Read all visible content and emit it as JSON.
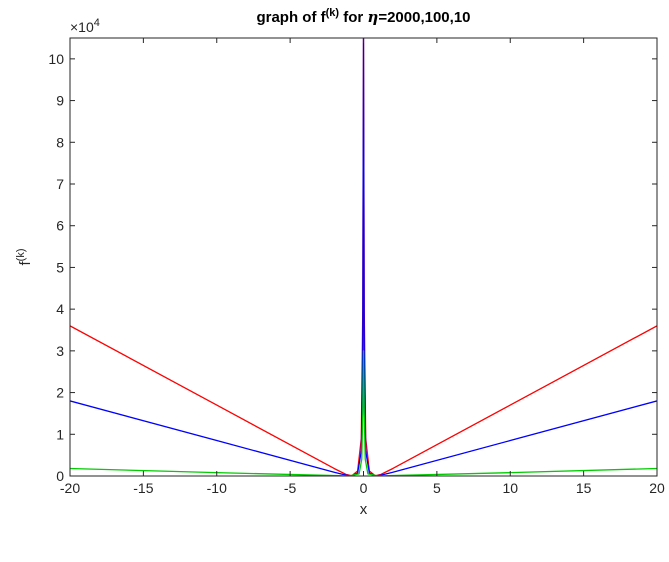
{
  "chart_data": {
    "type": "line",
    "title_parts": {
      "prefix": "graph of f",
      "superscript": "(k)",
      "middle": " for ",
      "symbol": "η",
      "suffix": "=2000,100,10"
    },
    "xlabel": "x",
    "ylabel_parts": {
      "base": "f",
      "superscript": "(k)"
    },
    "y_exponent_parts": {
      "prefix": "×10",
      "power": "4"
    },
    "xlim": [
      -20,
      20
    ],
    "ylim": [
      0,
      105000
    ],
    "x_ticks": [
      -20,
      -15,
      -10,
      -5,
      0,
      5,
      10,
      15,
      20
    ],
    "y_ticks": [
      0,
      10000,
      20000,
      30000,
      40000,
      50000,
      60000,
      70000,
      80000,
      90000,
      100000
    ],
    "y_tick_labels": [
      "0",
      "1",
      "2",
      "3",
      "4",
      "5",
      "6",
      "7",
      "8",
      "9",
      "10"
    ],
    "grid": false,
    "series": [
      {
        "color": "#ff0000",
        "points": [
          [
            -20,
            36000
          ],
          [
            -10,
            17000
          ],
          [
            -2,
            1800
          ],
          [
            -1.2,
            400
          ],
          [
            -0.8,
            50
          ],
          [
            -0.4,
            1200
          ],
          [
            -0.15,
            9000
          ],
          [
            -0.05,
            40000
          ],
          [
            0,
            105000
          ],
          [
            0.05,
            40000
          ],
          [
            0.15,
            9000
          ],
          [
            0.4,
            1200
          ],
          [
            0.8,
            50
          ],
          [
            1.2,
            400
          ],
          [
            2,
            1800
          ],
          [
            10,
            17000
          ],
          [
            20,
            36000
          ]
        ]
      },
      {
        "color": "#0000ff",
        "points": [
          [
            -20,
            18000
          ],
          [
            -10,
            8500
          ],
          [
            -2,
            900
          ],
          [
            -1.2,
            200
          ],
          [
            -0.8,
            30
          ],
          [
            -0.4,
            700
          ],
          [
            -0.15,
            6000
          ],
          [
            -0.05,
            30000
          ],
          [
            0,
            105000
          ],
          [
            0.05,
            30000
          ],
          [
            0.15,
            6000
          ],
          [
            0.4,
            700
          ],
          [
            0.8,
            30
          ],
          [
            1.2,
            200
          ],
          [
            2,
            900
          ],
          [
            10,
            8500
          ],
          [
            20,
            18000
          ]
        ]
      },
      {
        "color": "#00cc00",
        "points": [
          [
            -20,
            1800
          ],
          [
            -10,
            800
          ],
          [
            -2,
            100
          ],
          [
            -1,
            20
          ],
          [
            -0.3,
            500
          ],
          [
            -0.12,
            4000
          ],
          [
            -0.05,
            15000
          ],
          [
            0,
            30000
          ],
          [
            0.05,
            15000
          ],
          [
            0.12,
            4000
          ],
          [
            0.3,
            500
          ],
          [
            1,
            20
          ],
          [
            2,
            100
          ],
          [
            10,
            800
          ],
          [
            20,
            1800
          ]
        ]
      }
    ]
  }
}
